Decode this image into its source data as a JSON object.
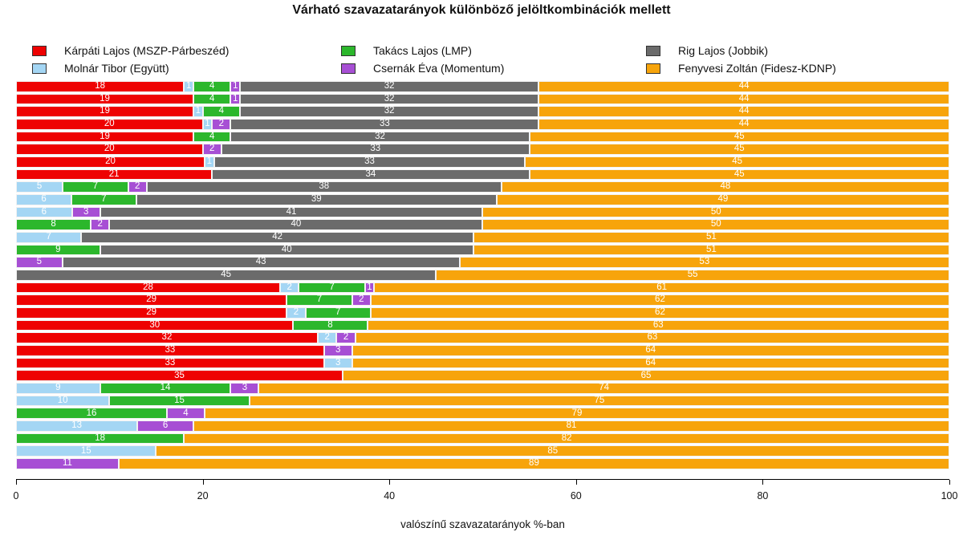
{
  "title": "Várható szavazatarányok különböző jelöltkombinációk mellett",
  "legend": {
    "items": [
      {
        "key": "karpati",
        "label": "Kárpáti Lajos (MSZP-Párbeszéd)",
        "color": "#ee0202"
      },
      {
        "key": "molnar",
        "label": "Molnár Tibor (Együtt)",
        "color": "#a4d6f4"
      },
      {
        "key": "takacs",
        "label": "Takács Lajos (LMP)",
        "color": "#2cb72c"
      },
      {
        "key": "csernak",
        "label": "Csernák Éva (Momentum)",
        "color": "#a74fd4"
      },
      {
        "key": "rig",
        "label": "Rig Lajos (Jobbik)",
        "color": "#6b6b6b"
      },
      {
        "key": "fenyvesi",
        "label": "Fenyvesi Zoltán (Fidesz-KDNP)",
        "color": "#f7a40b"
      }
    ]
  },
  "chart_data": {
    "type": "bar",
    "orientation": "horizontal-stacked",
    "title": "Várható szavazatarányok különböző jelöltkombinációk mellett",
    "xlabel": "valószínű szavazatarányok %-ban",
    "xlim": [
      0,
      100
    ],
    "xticks": [
      0,
      20,
      40,
      60,
      80,
      100
    ],
    "grid": false,
    "legend_position": "top",
    "series_order": [
      "karpati",
      "molnar",
      "takacs",
      "csernak",
      "rig",
      "fenyvesi"
    ],
    "rows": [
      {
        "karpati": 18,
        "molnar": 1,
        "takacs": 4,
        "csernak": 1,
        "rig": 32,
        "fenyvesi": 44
      },
      {
        "karpati": 19,
        "takacs": 4,
        "csernak": 1,
        "rig": 32,
        "fenyvesi": 44
      },
      {
        "karpati": 19,
        "molnar": 1,
        "takacs": 4,
        "rig": 32,
        "fenyvesi": 44
      },
      {
        "karpati": 20,
        "molnar": 1,
        "csernak": 2,
        "rig": 33,
        "fenyvesi": 44
      },
      {
        "karpati": 19,
        "takacs": 4,
        "rig": 32,
        "fenyvesi": 45
      },
      {
        "karpati": 20,
        "csernak": 2,
        "rig": 33,
        "fenyvesi": 45
      },
      {
        "karpati": 20,
        "molnar": 1,
        "rig": 33,
        "fenyvesi": 45
      },
      {
        "karpati": 21,
        "rig": 34,
        "fenyvesi": 45
      },
      {
        "molnar": 5,
        "takacs": 7,
        "csernak": 2,
        "rig": 38,
        "fenyvesi": 48
      },
      {
        "molnar": 6,
        "takacs": 7,
        "rig": 39,
        "fenyvesi": 49
      },
      {
        "molnar": 6,
        "csernak": 3,
        "rig": 41,
        "fenyvesi": 50
      },
      {
        "takacs": 8,
        "csernak": 2,
        "rig": 40,
        "fenyvesi": 50
      },
      {
        "molnar": 7,
        "rig": 42,
        "fenyvesi": 51
      },
      {
        "takacs": 9,
        "rig": 40,
        "fenyvesi": 51
      },
      {
        "csernak": 5,
        "rig": 43,
        "fenyvesi": 53
      },
      {
        "rig": 45,
        "fenyvesi": 55
      },
      {
        "karpati": 28,
        "molnar": 2,
        "takacs": 7,
        "csernak": 1,
        "fenyvesi": 61
      },
      {
        "karpati": 29,
        "takacs": 7,
        "csernak": 2,
        "fenyvesi": 62
      },
      {
        "karpati": 29,
        "molnar": 2,
        "takacs": 7,
        "fenyvesi": 62
      },
      {
        "karpati": 30,
        "takacs": 8,
        "fenyvesi": 63
      },
      {
        "karpati": 32,
        "molnar": 2,
        "csernak": 2,
        "fenyvesi": 63
      },
      {
        "karpati": 33,
        "csernak": 3,
        "fenyvesi": 64
      },
      {
        "karpati": 33,
        "molnar": 3,
        "fenyvesi": 64
      },
      {
        "karpati": 35,
        "fenyvesi": 65
      },
      {
        "molnar": 9,
        "takacs": 14,
        "csernak": 3,
        "fenyvesi": 74
      },
      {
        "molnar": 10,
        "takacs": 15,
        "fenyvesi": 75
      },
      {
        "takacs": 16,
        "csernak": 4,
        "fenyvesi": 79
      },
      {
        "molnar": 13,
        "csernak": 6,
        "fenyvesi": 81
      },
      {
        "takacs": 18,
        "fenyvesi": 82
      },
      {
        "molnar": 15,
        "fenyvesi": 85
      },
      {
        "csernak": 11,
        "fenyvesi": 89
      }
    ]
  },
  "layout_hints": {
    "legend_col_lefts": [
      40,
      425,
      805
    ],
    "legend_row_tops": [
      55,
      77
    ]
  }
}
